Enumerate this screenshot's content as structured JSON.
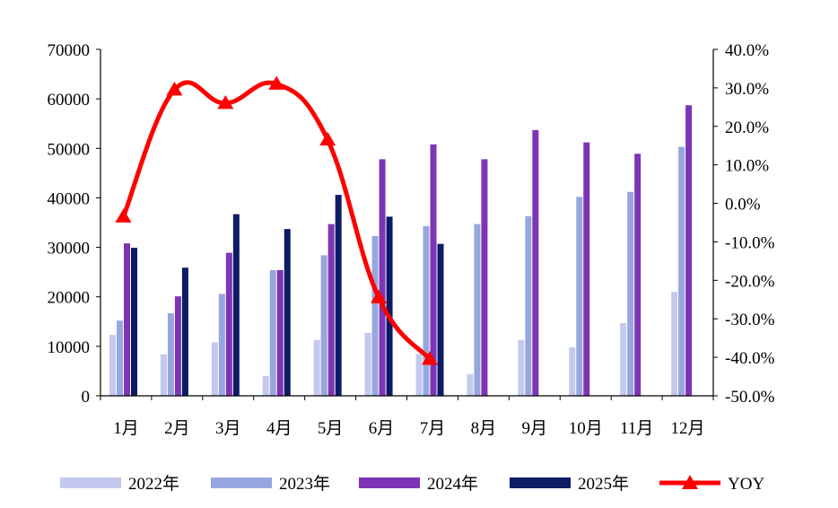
{
  "chart_data": {
    "type": "bar",
    "categories": [
      "1月",
      "2月",
      "3月",
      "4月",
      "5月",
      "6月",
      "7月",
      "8月",
      "9月",
      "10月",
      "11月",
      "12月"
    ],
    "series": [
      {
        "name": "2022年",
        "color": "#c3c9ee",
        "values": [
          12300,
          8400,
          10800,
          4000,
          11300,
          12700,
          8500,
          4400,
          11300,
          9800,
          14700,
          21000
        ]
      },
      {
        "name": "2023年",
        "color": "#98a6e0",
        "values": [
          15200,
          16700,
          20600,
          25400,
          28400,
          32300,
          34300,
          34700,
          36300,
          40200,
          41200,
          50300
        ]
      },
      {
        "name": "2024年",
        "color": "#7d35b5",
        "values": [
          30800,
          20100,
          28900,
          25400,
          34700,
          47800,
          50800,
          47800,
          53700,
          51200,
          48900,
          58700
        ]
      },
      {
        "name": "2025年",
        "color": "#0d1b66",
        "values": [
          29900,
          25900,
          36700,
          33700,
          40600,
          36200,
          30700,
          null,
          null,
          null,
          null,
          null
        ]
      }
    ],
    "line_series": {
      "name": "YOY",
      "color": "#ff0000",
      "values": [
        -3.5,
        29.5,
        26.0,
        31.0,
        16.5,
        -24.5,
        -40.5
      ]
    },
    "y_left": {
      "min": 0,
      "max": 70000,
      "ticks": [
        "0",
        "10000",
        "20000",
        "30000",
        "40000",
        "50000",
        "60000",
        "70000"
      ]
    },
    "y_right": {
      "min": -50,
      "max": 40,
      "ticks": [
        "40.0%",
        "30.0%",
        "20.0%",
        "10.0%",
        "0.0%",
        "-10.0%",
        "-20.0%",
        "-30.0%",
        "-40.0%",
        "-50.0%"
      ]
    },
    "legend_position": "bottom",
    "grid": false
  }
}
